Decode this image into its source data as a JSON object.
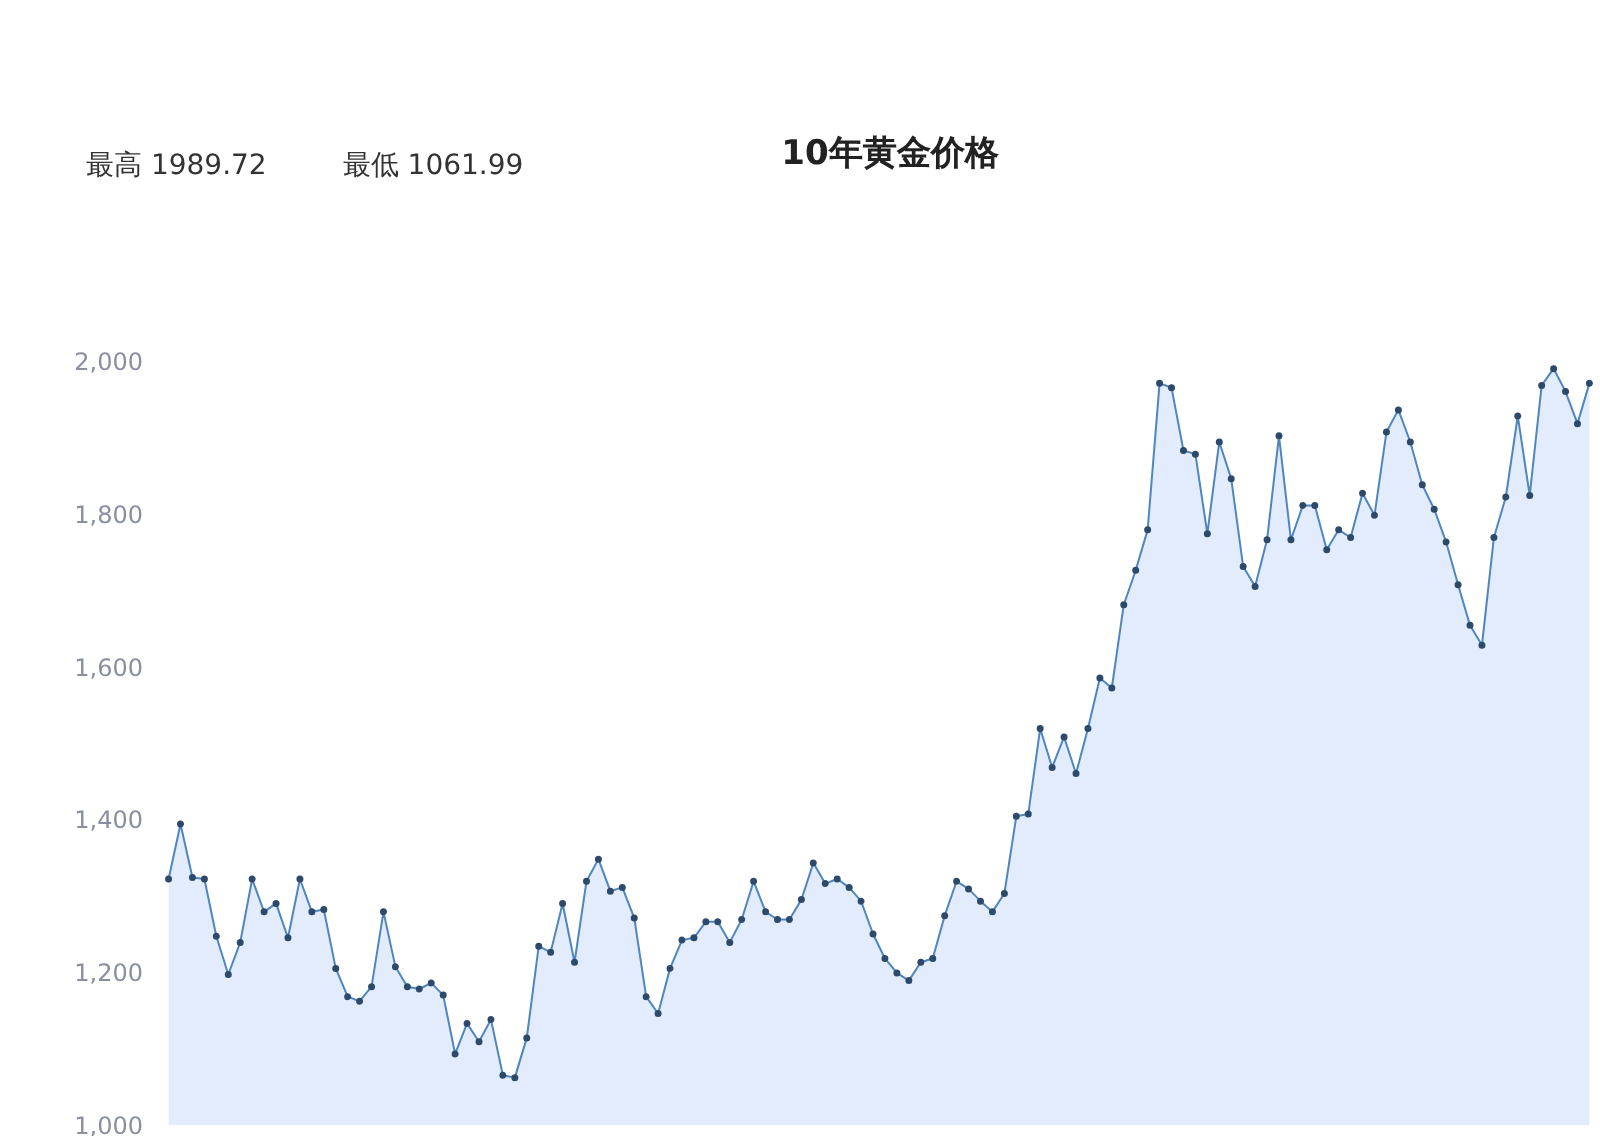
{
  "chart_data": {
    "type": "area",
    "title": "10年黄金价格",
    "annotations": [
      "最高 1989.72",
      "最低 1061.99"
    ],
    "categories": [
      null,
      null,
      null,
      null,
      null,
      null,
      null,
      null,
      null,
      null,
      null,
      null,
      null,
      null,
      null,
      null,
      null,
      null,
      null,
      null,
      null,
      null,
      null,
      null,
      null,
      null,
      null,
      null,
      null,
      null,
      null,
      null,
      null,
      null,
      null,
      null,
      null,
      null,
      null,
      null,
      null,
      null,
      null,
      null,
      null,
      null,
      null,
      null,
      null,
      null,
      null,
      null,
      null,
      null,
      null,
      null,
      null,
      null,
      null,
      null,
      null,
      null,
      null,
      null,
      null,
      null,
      null,
      null,
      null,
      null,
      null,
      null,
      null,
      null,
      null,
      null,
      null,
      null,
      null,
      null,
      null,
      null,
      null,
      null,
      null,
      null,
      null,
      null,
      null,
      null,
      null,
      null,
      null,
      null,
      null,
      null,
      null,
      null,
      null,
      null,
      null,
      null,
      null,
      null,
      null,
      null,
      null,
      null,
      null,
      null,
      null,
      null,
      null,
      null,
      null,
      null,
      null,
      null,
      null,
      null
    ],
    "series": [
      {
        "color": "#4f86bf",
        "values": [
          1322,
          1394,
          1324,
          1322,
          1247,
          1197,
          1239,
          1322,
          1279,
          1290,
          1245,
          1322,
          1279,
          1282,
          1205,
          1168,
          1162,
          1181,
          1279,
          1207,
          1181,
          1178,
          1186,
          1170,
          1093,
          1133,
          1109,
          1138,
          1065,
          1062,
          1114,
          1234,
          1226,
          1290,
          1213,
          1319,
          1348,
          1306,
          1311,
          1271,
          1168,
          1146,
          1205,
          1242,
          1245,
          1266,
          1266,
          1239,
          1269,
          1319,
          1279,
          1269,
          1269,
          1295,
          1343,
          1316,
          1322,
          1311,
          1293,
          1250,
          1218,
          1199,
          1189,
          1213,
          1218,
          1274,
          1319,
          1309,
          1293,
          1279,
          1303,
          1404,
          1407,
          1519,
          1468,
          1508,
          1460,
          1519,
          1585,
          1572,
          1681,
          1726,
          1779,
          1971,
          1965,
          1883,
          1878,
          1774,
          1894,
          1846,
          1731,
          1705,
          1766,
          1902,
          1766,
          1811,
          1811,
          1753,
          1779,
          1769,
          1827,
          1798,
          1907,
          1936,
          1894,
          1838,
          1806,
          1763,
          1707,
          1654,
          1628,
          1769,
          1822,
          1928,
          1824,
          1968,
          1990,
          1960,
          1918,
          1971
        ]
      }
    ],
    "ylim": [
      1000,
      2000
    ],
    "yticks": [
      {
        "value": 1000,
        "label": "1,000"
      },
      {
        "value": 1200,
        "label": "1,200"
      },
      {
        "value": 1400,
        "label": "1,400"
      },
      {
        "value": 1600,
        "label": "1,600"
      },
      {
        "value": 1800,
        "label": "1,800"
      },
      {
        "value": 2000,
        "label": "2,000"
      }
    ],
    "marker": "circle",
    "tick_labels": "y",
    "grid": false
  }
}
